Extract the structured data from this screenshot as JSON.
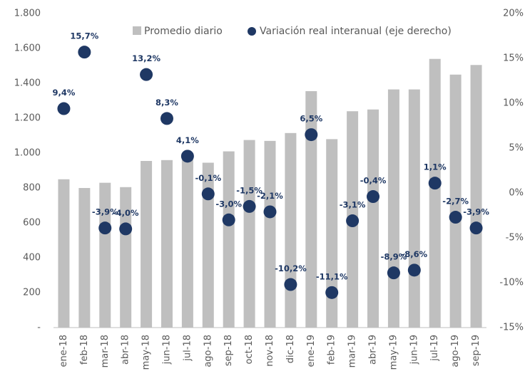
{
  "chart_data": {
    "type": "bar",
    "categories": [
      "ene-18",
      "feb-18",
      "mar-18",
      "abr-18",
      "may-18",
      "jun-18",
      "jul-18",
      "ago-18",
      "sep-18",
      "oct-18",
      "nov-18",
      "dic-18",
      "ene-19",
      "feb-19",
      "mar-19",
      "abr-19",
      "may-19",
      "jun-19",
      "jul-19",
      "ago-19",
      "sep-19"
    ],
    "series": [
      {
        "name": "Promedio diario",
        "type": "bar",
        "color": "#bfbfbf",
        "values": [
          850,
          800,
          830,
          805,
          955,
          960,
          1000,
          945,
          1010,
          1075,
          1070,
          1115,
          1355,
          1080,
          1240,
          1250,
          1365,
          1365,
          1540,
          1450,
          1505
        ]
      },
      {
        "name": "Variación real interanual (eje derecho)",
        "type": "scatter",
        "axis": "y2",
        "color": "#1f3864",
        "values": [
          9.4,
          15.7,
          -3.9,
          -4.0,
          13.2,
          8.3,
          4.1,
          -0.1,
          -3.0,
          -1.5,
          -2.1,
          -10.2,
          6.5,
          -11.1,
          -3.1,
          -0.4,
          -8.9,
          -8.6,
          1.1,
          -2.7,
          -3.9
        ],
        "value_labels": [
          "9,4%",
          "15,7%",
          "-3,9%",
          "-4,0%",
          "13,2%",
          "8,3%",
          "4,1%",
          "-0,1%",
          "-3,0%",
          "-1,5%",
          "-2,1%",
          "-10,2%",
          "6,5%",
          "-11,1%",
          "-3,1%",
          "-0,4%",
          "-8,9%",
          "-8,6%",
          "1,1%",
          "-2,7%",
          "-3,9%"
        ]
      }
    ],
    "ylim": [
      0,
      1800
    ],
    "yticks": [
      {
        "value": 0,
        "label": "-"
      },
      200,
      400,
      600,
      800,
      {
        "value": 1000,
        "label": "1.000"
      },
      {
        "value": 1200,
        "label": "1.200"
      },
      {
        "value": 1400,
        "label": "1.400"
      },
      {
        "value": 1600,
        "label": "1.600"
      },
      {
        "value": 1800,
        "label": "1.800"
      }
    ],
    "y2lim": [
      -15,
      20
    ],
    "y2ticks": [
      {
        "value": -15,
        "label": "-15%"
      },
      {
        "value": -10,
        "label": "-10%"
      },
      {
        "value": -5,
        "label": "-5%"
      },
      {
        "value": 0,
        "label": "0%"
      },
      {
        "value": 5,
        "label": "5%"
      },
      {
        "value": 10,
        "label": "10%"
      },
      {
        "value": 15,
        "label": "15%"
      },
      {
        "value": 20,
        "label": "20%"
      }
    ],
    "grid": false
  }
}
